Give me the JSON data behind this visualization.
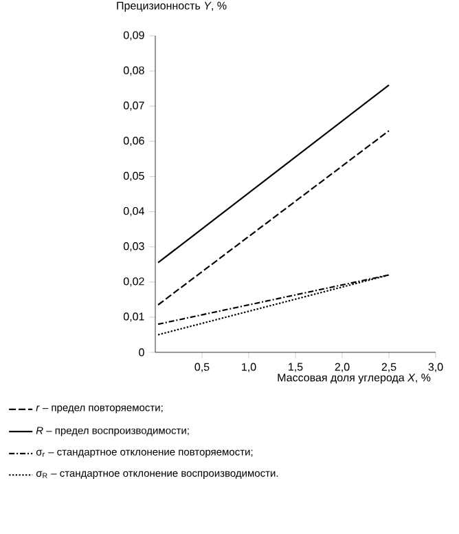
{
  "chart_data": {
    "type": "line",
    "ylabel": "Прецизионность *Y*, %",
    "xlabel": "Массовая доля углерода *X*, %",
    "xlim": [
      0,
      3
    ],
    "ylim": [
      0,
      0.09
    ],
    "xticks": [
      {
        "value": 0.5,
        "label": "0,5"
      },
      {
        "value": 1.0,
        "label": "1,0"
      },
      {
        "value": 1.5,
        "label": "1,5"
      },
      {
        "value": 2.0,
        "label": "2,0"
      },
      {
        "value": 2.5,
        "label": "2,5"
      },
      {
        "value": 3.0,
        "label": "3,0"
      }
    ],
    "yticks": [
      {
        "value": 0,
        "label": "0"
      },
      {
        "value": 0.01,
        "label": "0,01"
      },
      {
        "value": 0.02,
        "label": "0,02"
      },
      {
        "value": 0.03,
        "label": "0,03"
      },
      {
        "value": 0.04,
        "label": "0,04"
      },
      {
        "value": 0.05,
        "label": "0,05"
      },
      {
        "value": 0.06,
        "label": "0,06"
      },
      {
        "value": 0.07,
        "label": "0,07"
      },
      {
        "value": 0.08,
        "label": "0,08"
      },
      {
        "value": 0.09,
        "label": "0,09"
      }
    ],
    "legend": "bottom",
    "marker": "none",
    "x": [
      0.03,
      2.5
    ],
    "series": [
      {
        "name": "*r* – предел повторяемости;",
        "color": "#000000",
        "line_style": "dashed",
        "values": [
          0.0135,
          0.063
        ]
      },
      {
        "name": "*R* – предел воспроизводимости;",
        "color": "#000000",
        "line_style": "solid",
        "values": [
          0.0255,
          0.076
        ]
      },
      {
        "name": "σ$_{r}$ – стандартное отклонение повторяемости;",
        "color": "#000000",
        "line_style": "dashdot",
        "values": [
          0.008,
          0.022
        ]
      },
      {
        "name": "σ$_{R}$ – стандартное отклонение воспроизводимости.",
        "color": "#000000",
        "line_style": "dotted",
        "values": [
          0.005,
          0.022
        ]
      }
    ]
  }
}
